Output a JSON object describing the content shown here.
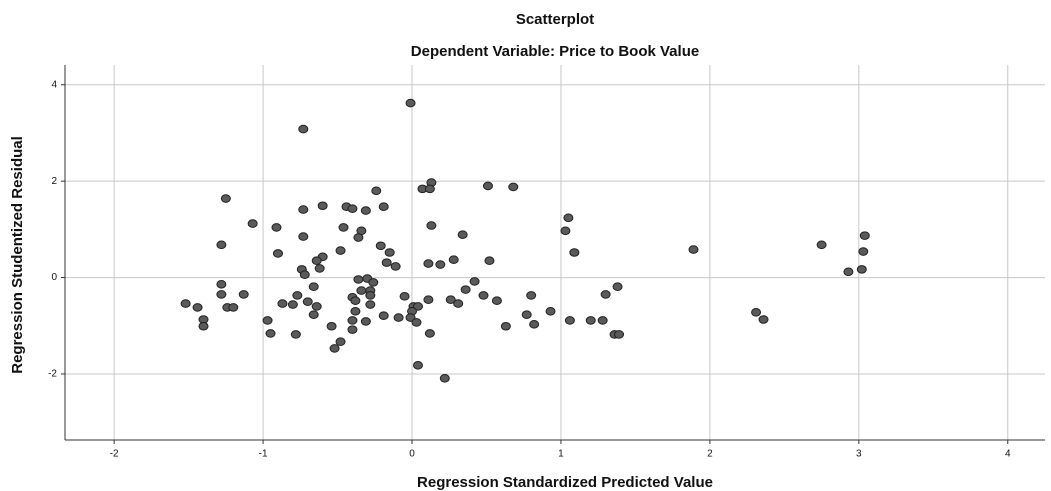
{
  "chart_data": {
    "type": "scatter",
    "title": "Scatterplot",
    "subtitle": "Dependent Variable: Price to Book Value",
    "x_label": "Regression Standardized Predicted Value",
    "y_label": "Regression Studentized Residual",
    "color": "#5a5a5a",
    "grid": true,
    "xlim": [
      -2.33,
      4.25
    ],
    "xticks": [
      -2,
      -1,
      0,
      1,
      2,
      3,
      4
    ],
    "ylim": [
      -3.37,
      4.41
    ],
    "yticks": [
      -2,
      0,
      2,
      4
    ],
    "x": [
      -0.01,
      -0.73,
      0.13,
      0.07,
      0.12,
      0.51,
      0.68,
      -0.24,
      -1.25,
      -0.6,
      -0.73,
      -0.44,
      -0.4,
      -0.31,
      -0.19,
      1.05,
      -1.07,
      -0.91,
      -0.46,
      -0.34,
      0.13,
      1.03,
      0.34,
      -0.73,
      -0.36,
      -1.28,
      -0.21,
      -0.48,
      -0.15,
      -0.9,
      1.09,
      1.89,
      2.75,
      3.04,
      3.03,
      -0.6,
      -0.64,
      -0.17,
      -0.11,
      0.11,
      0.19,
      0.28,
      0.52,
      -0.62,
      -0.74,
      -0.72,
      2.93,
      3.02,
      -0.36,
      -0.3,
      -0.26,
      0.42,
      -1.28,
      -0.66,
      1.38,
      0.36,
      -0.34,
      -0.28,
      -1.28,
      -1.13,
      -0.77,
      -0.4,
      -0.28,
      -0.05,
      0.48,
      0.8,
      1.3,
      0.11,
      0.26,
      -0.38,
      0.57,
      -0.7,
      0.31,
      -1.52,
      -0.87,
      -0.8,
      -0.28,
      -0.64,
      0.01,
      0.04,
      -1.24,
      -1.2,
      -1.44,
      0.0,
      0.93,
      -0.38,
      -0.66,
      0.77,
      2.31,
      -0.19,
      -0.09,
      -0.01,
      -1.4,
      -0.97,
      -0.4,
      -0.31,
      1.06,
      1.2,
      1.28,
      2.36,
      0.03,
      0.82,
      -1.4,
      -0.54,
      0.63,
      -0.4,
      -0.95,
      -0.78,
      0.12,
      1.36,
      1.39,
      -0.48,
      -0.52,
      0.04,
      0.22
    ],
    "y": [
      3.62,
      3.08,
      1.97,
      1.84,
      1.84,
      1.9,
      1.88,
      1.8,
      1.64,
      1.49,
      1.41,
      1.47,
      1.43,
      1.39,
      1.47,
      1.24,
      1.12,
      1.04,
      1.04,
      0.97,
      1.08,
      0.97,
      0.89,
      0.85,
      0.83,
      0.68,
      0.66,
      0.56,
      0.52,
      0.5,
      0.52,
      0.58,
      0.68,
      0.87,
      0.54,
      0.43,
      0.35,
      0.31,
      0.23,
      0.29,
      0.27,
      0.37,
      0.35,
      0.19,
      0.17,
      0.06,
      0.12,
      0.17,
      -0.04,
      -0.02,
      -0.1,
      -0.08,
      -0.14,
      -0.19,
      -0.19,
      -0.25,
      -0.27,
      -0.27,
      -0.35,
      -0.35,
      -0.37,
      -0.41,
      -0.37,
      -0.39,
      -0.37,
      -0.37,
      -0.35,
      -0.46,
      -0.46,
      -0.48,
      -0.48,
      -0.5,
      -0.54,
      -0.54,
      -0.54,
      -0.56,
      -0.56,
      -0.6,
      -0.6,
      -0.6,
      -0.62,
      -0.62,
      -0.62,
      -0.7,
      -0.7,
      -0.7,
      -0.77,
      -0.77,
      -0.72,
      -0.79,
      -0.83,
      -0.83,
      -0.87,
      -0.89,
      -0.89,
      -0.91,
      -0.89,
      -0.89,
      -0.89,
      -0.87,
      -0.93,
      -0.97,
      -1.01,
      -1.01,
      -1.01,
      -1.08,
      -1.16,
      -1.18,
      -1.16,
      -1.18,
      -1.18,
      -1.33,
      -1.47,
      -1.82,
      -2.09
    ]
  }
}
